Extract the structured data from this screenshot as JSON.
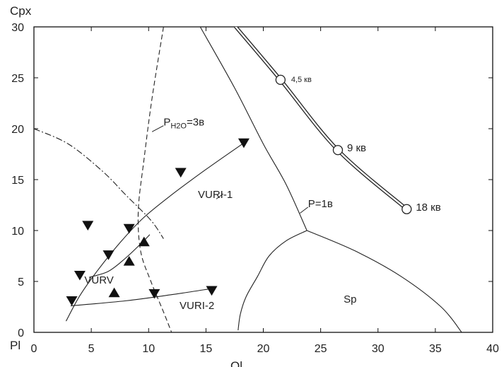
{
  "chart_data": {
    "type": "scatter",
    "xlabel": "Ol",
    "ylabel": "Cpx",
    "corner_label": "Pl",
    "xlim": [
      0,
      40
    ],
    "ylim": [
      0,
      30
    ],
    "x_ticks": [
      "0",
      "5",
      "10",
      "15",
      "20",
      "25",
      "30",
      "35",
      "40"
    ],
    "y_ticks": [
      "0",
      "5",
      "10",
      "15",
      "20",
      "25",
      "30"
    ],
    "grid": false,
    "series": [
      {
        "marker": "triangle-down",
        "points": [
          [
            3.3,
            3.1
          ],
          [
            4.0,
            5.6
          ],
          [
            4.7,
            10.5
          ],
          [
            6.5,
            7.6
          ],
          [
            8.3,
            10.2
          ],
          [
            10.5,
            3.8
          ],
          [
            12.8,
            15.7
          ],
          [
            15.5,
            4.1
          ],
          [
            18.3,
            18.6
          ]
        ]
      },
      {
        "marker": "triangle-up",
        "points": [
          [
            7.0,
            3.9
          ],
          [
            8.3,
            7.0
          ],
          [
            9.6,
            8.9
          ]
        ]
      }
    ],
    "curves": [
      {
        "style": "solid",
        "points": [
          [
            3.2,
            2.6
          ],
          [
            8.0,
            3.1
          ],
          [
            12.0,
            3.7
          ],
          [
            15.5,
            4.3
          ]
        ]
      },
      {
        "style": "solid",
        "points": [
          [
            2.8,
            1.1
          ],
          [
            4.0,
            3.6
          ],
          [
            5.5,
            6.0
          ],
          [
            7.5,
            8.8
          ],
          [
            9.5,
            11.2
          ],
          [
            12.0,
            13.5
          ],
          [
            15.0,
            16.0
          ],
          [
            18.3,
            18.6
          ]
        ]
      },
      {
        "style": "solid",
        "points": [
          [
            4.8,
            5.4
          ],
          [
            6.5,
            6.0
          ],
          [
            8.0,
            7.3
          ],
          [
            9.5,
            8.9
          ],
          [
            10.1,
            9.6
          ]
        ]
      },
      {
        "style": "dashed",
        "points": [
          [
            11.3,
            30
          ],
          [
            10.3,
            23.0
          ],
          [
            9.6,
            17.0
          ],
          [
            9.1,
            12.0
          ],
          [
            9.3,
            8.0
          ],
          [
            10.2,
            5.0
          ],
          [
            11.3,
            2.0
          ],
          [
            12.0,
            0
          ]
        ]
      },
      {
        "style": "dashdot",
        "points": [
          [
            0,
            20
          ],
          [
            3.0,
            18.5
          ],
          [
            6.0,
            15.8
          ],
          [
            8.0,
            13.5
          ],
          [
            10.2,
            11.0
          ],
          [
            11.3,
            9.2
          ]
        ]
      },
      {
        "style": "solid",
        "points": [
          [
            14.5,
            30
          ],
          [
            17.5,
            24.0
          ],
          [
            20.0,
            18.5
          ],
          [
            22.0,
            14.5
          ],
          [
            23.8,
            10.0
          ]
        ]
      },
      {
        "style": "solid",
        "points": [
          [
            23.8,
            10.0
          ],
          [
            28.0,
            8.0
          ],
          [
            32.0,
            5.5
          ],
          [
            35.5,
            2.5
          ],
          [
            37.3,
            0
          ]
        ]
      },
      {
        "style": "solid",
        "points": [
          [
            23.8,
            10.0
          ],
          [
            22.0,
            9.0
          ],
          [
            20.5,
            7.5
          ],
          [
            19.5,
            5.5
          ],
          [
            18.5,
            3.5
          ],
          [
            18.0,
            1.8
          ],
          [
            17.8,
            0.2
          ]
        ]
      },
      {
        "style": "double",
        "points": [
          [
            17.6,
            30
          ],
          [
            21.5,
            24.8
          ],
          [
            26.5,
            17.9
          ],
          [
            32.5,
            12.1
          ]
        ]
      }
    ],
    "isobar_points": [
      {
        "x": 21.5,
        "y": 24.8,
        "label": "4,5 кв"
      },
      {
        "x": 26.5,
        "y": 17.9,
        "label": "9 кв"
      },
      {
        "x": 32.5,
        "y": 12.1,
        "label": "18 кв"
      }
    ],
    "annotations": [
      {
        "text": "P",
        "sub": "H2O",
        "rest": "=3в",
        "x": 11.3,
        "y": 20.3
      },
      {
        "text": "VURI-1",
        "x": 14.3,
        "y": 13.2
      },
      {
        "text": "VURV",
        "x": 4.4,
        "y": 4.8
      },
      {
        "text": "VURI-2",
        "x": 12.7,
        "y": 2.3
      },
      {
        "text": "P=1в",
        "x": 23.9,
        "y": 12.3
      },
      {
        "text": "Sp",
        "x": 27.0,
        "y": 2.9
      }
    ]
  }
}
